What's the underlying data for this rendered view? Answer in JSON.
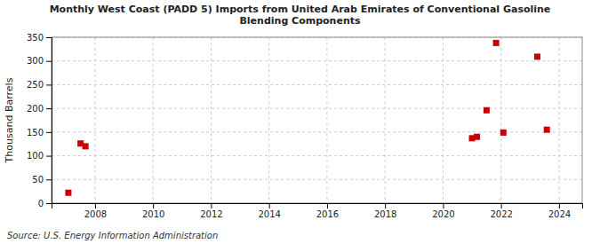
{
  "chart_data": {
    "type": "scatter",
    "title": "Monthly West Coast (PADD 5) Imports from United Arab Emirates of Conventional Gasoline\nBlending Components",
    "ylabel": "Thousand Barrels",
    "source": "Source: U.S. Energy Information Administration",
    "x": [
      2007.08,
      2007.5,
      2007.67,
      2021.0,
      2021.17,
      2021.5,
      2021.83,
      2022.08,
      2023.25,
      2023.58
    ],
    "values": [
      22,
      126,
      120,
      137,
      140,
      196,
      338,
      149,
      309,
      155
    ],
    "color": "#cc0000",
    "marker": "square",
    "xlim": [
      2006.5,
      2024.8
    ],
    "ylim": [
      0,
      350
    ],
    "xticks": [
      2008,
      2010,
      2012,
      2014,
      2016,
      2018,
      2020,
      2022,
      2024
    ],
    "yticks": [
      0,
      50,
      100,
      150,
      200,
      250,
      300,
      350
    ],
    "grid": true
  }
}
